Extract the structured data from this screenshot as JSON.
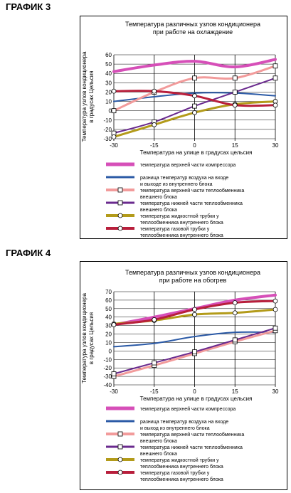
{
  "graph3": {
    "label": "ГРАФИК 3",
    "chart_data": {
      "type": "line",
      "title": "Температура различных узлов кондиционера при работе на охлаждение",
      "title_lines": [
        "Температура различных узлов кондиционера",
        "при работе на охлаждение"
      ],
      "xlabel": "Температура на улице в градусах цельсия",
      "ylabel": "Температура узлов кондиционера в градусах Цельсия",
      "ylabel_lines": [
        "Температура узлов кондиционера",
        "в градусах Цельсия"
      ],
      "x": [
        -30,
        -15,
        0,
        15,
        30
      ],
      "x_tick_labels": [
        "-30",
        "-15",
        "0",
        "15",
        "30"
      ],
      "ylim": [
        -30,
        60
      ],
      "y_ticks": [
        -30,
        -20,
        -10,
        0,
        10,
        20,
        30,
        40,
        50,
        60
      ],
      "y_tick_labels": [
        "-30",
        "-20",
        "-10",
        "0",
        "10",
        "20",
        "30",
        "40",
        "50",
        "60"
      ],
      "grid": true,
      "series": [
        {
          "name": "температура верхней части компрессора",
          "color": "#d64fb8",
          "marker": "none",
          "width": 4,
          "values": [
            42,
            49,
            53,
            47,
            55
          ]
        },
        {
          "name": "разница температур воздуха на входе и выходе из внутреннего блока",
          "color": "#2b5aa6",
          "marker": "none",
          "width": 2,
          "values": [
            10,
            15,
            19,
            19,
            16
          ]
        },
        {
          "name": "температура верхней части теплообменника внешнего блока",
          "color": "#f29b9b",
          "marker": "square",
          "width": 3,
          "values": [
            0,
            20,
            35,
            35,
            48
          ]
        },
        {
          "name": "температура нижней части теплообменника внешнего блока",
          "color": "#6a2a8e",
          "marker": "square",
          "width": 2,
          "values": [
            -24,
            -12,
            5,
            20,
            35
          ]
        },
        {
          "name": "температура жидкостной трубки у теплообменника внутреннего блока",
          "color": "#b39b1a",
          "marker": "circle",
          "width": 3,
          "values": [
            -28,
            -15,
            -2,
            7,
            10
          ]
        },
        {
          "name": "температура газовой трубки у теплообменника внутреннего блока",
          "color": "#b81f3c",
          "marker": "circle",
          "width": 3,
          "values": [
            21,
            21,
            16,
            6,
            6
          ]
        }
      ],
      "legend_lines": [
        [
          "температура верхней части компрессора"
        ],
        [
          "разница температур воздуха на входе",
          "и выходе из внутреннего блока"
        ],
        [
          "температура верхней части теплообменника",
          "внешнего блока"
        ],
        [
          "температура нижней части теплообменника",
          "внешнего блока"
        ],
        [
          "температура жидкостной трубки у",
          "теплообменника внутреннего блока"
        ],
        [
          "температура газовой трубки у",
          "теплообменника внутреннего блока"
        ]
      ],
      "legend_placement": "bottom"
    }
  },
  "graph4": {
    "label": "ГРАФИК 4",
    "chart_data": {
      "type": "line",
      "title": "Температура различных узлов кондиционера при работе на обогрев",
      "title_lines": [
        "Температура различных узлов кондиционера",
        "при работе на обогрев"
      ],
      "xlabel": "Температура на улице в градусах цельсия",
      "ylabel": "Температура узлов кондиционера в градусах Цельсия",
      "ylabel_lines": [
        "Температура узлов кондиционера",
        "в градусах Цельсия"
      ],
      "x": [
        -30,
        -15,
        0,
        15,
        30
      ],
      "x_tick_labels": [
        "-30",
        "-15",
        "0",
        "15",
        "30"
      ],
      "ylim": [
        -40,
        70
      ],
      "y_ticks": [
        -40,
        -30,
        -20,
        -10,
        0,
        10,
        20,
        30,
        40,
        50,
        60,
        70
      ],
      "y_tick_labels": [
        "-40",
        "-30",
        "-20",
        "-10",
        "0",
        "10",
        "20",
        "30",
        "40",
        "50",
        "60",
        "70"
      ],
      "grid": true,
      "series": [
        {
          "name": "температура верхней части компрессора",
          "color": "#d64fb8",
          "marker": "none",
          "width": 4,
          "values": [
            31,
            40,
            50,
            60,
            66
          ]
        },
        {
          "name": "разница температур воздуха на входе и выходе из внутреннего блока",
          "color": "#2b5aa6",
          "marker": "none",
          "width": 2,
          "values": [
            5,
            9,
            17,
            22,
            22
          ]
        },
        {
          "name": "температура верхней части теплообменника внешнего блока",
          "color": "#f29b9b",
          "marker": "square",
          "width": 3,
          "values": [
            -30,
            -17,
            -3,
            11,
            24
          ]
        },
        {
          "name": "температура нижней части теплообменника внешнего блока",
          "color": "#6a2a8e",
          "marker": "square",
          "width": 2,
          "values": [
            -27,
            -14,
            -1,
            13,
            27
          ]
        },
        {
          "name": "температура жидкостной трубки у теплообменника внутреннего блока",
          "color": "#b39b1a",
          "marker": "circle",
          "width": 3,
          "values": [
            32,
            36,
            43,
            45,
            49
          ]
        },
        {
          "name": "температура газовой трубки у теплообменника внутреннего блока",
          "color": "#b81f3c",
          "marker": "circle",
          "width": 3,
          "values": [
            31,
            37,
            49,
            57,
            59
          ]
        }
      ],
      "legend_lines": [
        [
          "температура верхней части компрессора"
        ],
        [
          "разница температур воздуха на входе",
          "и выход из внутреннего блока"
        ],
        [
          "температура верхней части теплообменника",
          "внешнего блока"
        ],
        [
          "температура нижней части теплообменника",
          "внешнего блока"
        ],
        [
          "температура жидкостной трубки у",
          "теплообменника внутреннего блока"
        ],
        [
          "температура газовой трубки у",
          "теплообменника внутреннего блока"
        ]
      ],
      "legend_placement": "bottom"
    }
  }
}
